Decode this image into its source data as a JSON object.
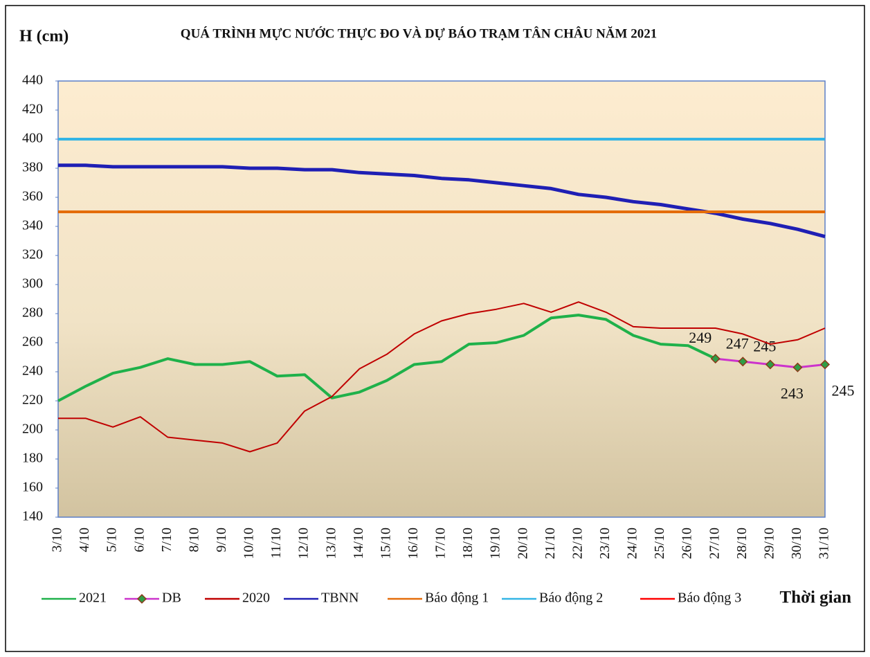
{
  "chart_data": {
    "type": "line",
    "title": "QUÁ TRÌNH MỰC NƯỚC THỰC ĐO VÀ DỰ BÁO TRẠM TÂN CHÂU NĂM 2021",
    "y_label": "H (cm)",
    "x_label": "Thời gian",
    "categories": [
      "3/10",
      "4/10",
      "5/10",
      "6/10",
      "7/10",
      "8/10",
      "9/10",
      "10/10",
      "11/10",
      "12/10",
      "13/10",
      "14/10",
      "15/10",
      "16/10",
      "17/10",
      "18/10",
      "19/10",
      "20/10",
      "21/10",
      "22/10",
      "23/10",
      "24/10",
      "25/10",
      "26/10",
      "27/10",
      "28/10",
      "29/10",
      "30/10",
      "31/10"
    ],
    "ylim": [
      140,
      440
    ],
    "yticks": [
      140,
      160,
      180,
      200,
      220,
      240,
      260,
      280,
      300,
      320,
      340,
      360,
      380,
      400,
      420,
      440
    ],
    "grid": false,
    "legend": "bottom",
    "series": [
      {
        "name": "2021",
        "color": "#1fb14a",
        "values": [
          220,
          230,
          239,
          243,
          249,
          245,
          245,
          247,
          237,
          238,
          222,
          226,
          234,
          245,
          247,
          259,
          260,
          265,
          277,
          279,
          276,
          265,
          259,
          258,
          249,
          null,
          null,
          null,
          null
        ]
      },
      {
        "name": "DB",
        "color": "#cc33cc",
        "marker": "diamond",
        "marker_color": "#2e9e47",
        "show_values": true,
        "values": [
          null,
          null,
          null,
          null,
          null,
          null,
          null,
          null,
          null,
          null,
          null,
          null,
          null,
          null,
          null,
          null,
          null,
          null,
          null,
          null,
          null,
          null,
          null,
          null,
          249,
          247,
          245,
          243,
          245
        ]
      },
      {
        "name": "2020",
        "color": "#c00000",
        "values": [
          208,
          208,
          202,
          209,
          195,
          193,
          191,
          185,
          191,
          213,
          223,
          242,
          252,
          266,
          275,
          280,
          283,
          287,
          281,
          288,
          281,
          271,
          270,
          270,
          270,
          266,
          259,
          262,
          270
        ]
      },
      {
        "name": "TBNN",
        "color": "#1f1fb4",
        "values": [
          382,
          382,
          381,
          381,
          381,
          381,
          381,
          380,
          380,
          379,
          379,
          377,
          376,
          375,
          373,
          372,
          370,
          368,
          366,
          362,
          360,
          357,
          355,
          352,
          349,
          345,
          342,
          338,
          333
        ]
      },
      {
        "name": "Báo động 1",
        "color": "#e46c0a",
        "values": [
          350,
          350,
          350,
          350,
          350,
          350,
          350,
          350,
          350,
          350,
          350,
          350,
          350,
          350,
          350,
          350,
          350,
          350,
          350,
          350,
          350,
          350,
          350,
          350,
          350,
          350,
          350,
          350,
          350
        ]
      },
      {
        "name": "Báo động 2",
        "color": "#33b5e5",
        "values": [
          400,
          400,
          400,
          400,
          400,
          400,
          400,
          400,
          400,
          400,
          400,
          400,
          400,
          400,
          400,
          400,
          400,
          400,
          400,
          400,
          400,
          400,
          400,
          400,
          400,
          400,
          400,
          400,
          400
        ]
      },
      {
        "name": "Báo động 3",
        "color": "#ff0000",
        "values": [
          null,
          null,
          null,
          null,
          null,
          null,
          null,
          null,
          null,
          null,
          null,
          null,
          null,
          null,
          null,
          null,
          null,
          null,
          null,
          null,
          null,
          null,
          null,
          null,
          null,
          null,
          null,
          null,
          null
        ]
      }
    ]
  }
}
